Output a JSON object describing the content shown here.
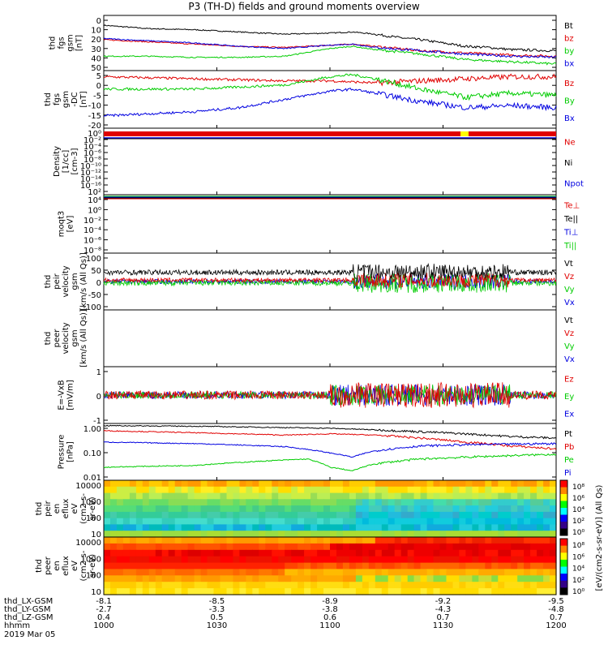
{
  "title": "P3 (TH-D) fields and ground moments overview",
  "colorbar_label": "[eV/(cm2-s-sr-eV)] (All Qs)",
  "footer": {
    "rows": [
      {
        "label": "thd_LX-GSM",
        "values": [
          "-8.1",
          "-8.5",
          "-8.9",
          "-9.2",
          "-9.5"
        ]
      },
      {
        "label": "thd_LY-GSM",
        "values": [
          "-2.7",
          "-3.3",
          "-3.8",
          "-4.3",
          "-4.8"
        ]
      },
      {
        "label": "thd_LZ-GSM",
        "values": [
          "0.4",
          "0.5",
          "0.6",
          "0.7",
          "0.7"
        ]
      },
      {
        "label": "hhmm",
        "values": [
          "1000",
          "1030",
          "1100",
          "1130",
          "1200"
        ]
      }
    ],
    "date": "2019 Mar 05"
  },
  "chart_data": [
    {
      "type": "line",
      "ylabel": [
        "thd",
        "fgs",
        "gsm",
        "[nT]"
      ],
      "ylim": [
        0,
        50
      ],
      "yticks": [
        "0",
        "10",
        "20",
        "30",
        "40",
        "50"
      ],
      "legend": [
        {
          "name": "Bt",
          "color": "#000000"
        },
        {
          "name": "bz",
          "color": "#e00000"
        },
        {
          "name": "by",
          "color": "#00cc00"
        },
        {
          "name": "bx",
          "color": "#0000e0"
        }
      ],
      "series": [
        {
          "name": "Bt",
          "color": "#000000",
          "points": [
            [
              0,
              41
            ],
            [
              0.1,
              38
            ],
            [
              0.2,
              37
            ],
            [
              0.3,
              35
            ],
            [
              0.4,
              33
            ],
            [
              0.5,
              34
            ],
            [
              0.55,
              35
            ],
            [
              0.6,
              33
            ],
            [
              0.65,
              30
            ],
            [
              0.7,
              28
            ],
            [
              0.75,
              25
            ],
            [
              0.8,
              22
            ],
            [
              0.85,
              21
            ],
            [
              0.9,
              19
            ],
            [
              1,
              18
            ]
          ]
        },
        {
          "name": "bz",
          "color": "#e00000",
          "points": [
            [
              0,
              28
            ],
            [
              0.1,
              26
            ],
            [
              0.2,
              24
            ],
            [
              0.3,
              22
            ],
            [
              0.4,
              21
            ],
            [
              0.5,
              23
            ],
            [
              0.55,
              24
            ],
            [
              0.6,
              22
            ],
            [
              0.65,
              20
            ],
            [
              0.7,
              18
            ],
            [
              0.8,
              16
            ],
            [
              0.9,
              14
            ],
            [
              1,
              13
            ]
          ]
        },
        {
          "name": "by",
          "color": "#00cc00",
          "points": [
            [
              0,
              13
            ],
            [
              0.1,
              13
            ],
            [
              0.2,
              12
            ],
            [
              0.3,
              12
            ],
            [
              0.4,
              13
            ],
            [
              0.5,
              20
            ],
            [
              0.55,
              22
            ],
            [
              0.6,
              19
            ],
            [
              0.7,
              15
            ],
            [
              0.8,
              10
            ],
            [
              0.9,
              8
            ],
            [
              1,
              6
            ]
          ]
        },
        {
          "name": "bx",
          "color": "#0000e0",
          "points": [
            [
              0,
              29
            ],
            [
              0.1,
              27
            ],
            [
              0.2,
              25
            ],
            [
              0.3,
              22
            ],
            [
              0.4,
              20
            ],
            [
              0.5,
              23
            ],
            [
              0.55,
              24
            ],
            [
              0.6,
              21
            ],
            [
              0.7,
              18
            ],
            [
              0.8,
              15
            ],
            [
              0.9,
              13
            ],
            [
              1,
              12
            ]
          ]
        }
      ]
    },
    {
      "type": "line",
      "ylabel": [
        "thd",
        "fgs",
        "gsm",
        "-DC",
        "[nT]"
      ],
      "ylim": [
        -22,
        6
      ],
      "yticks": [
        "5",
        "0",
        "-5",
        "-10",
        "-15",
        "-20"
      ],
      "ytick_values": [
        5,
        0,
        -5,
        -10,
        -15,
        -20
      ],
      "legend": [
        {
          "name": "Bz",
          "color": "#e00000"
        },
        {
          "name": "By",
          "color": "#00cc00"
        },
        {
          "name": "Bx",
          "color": "#0000e0"
        }
      ],
      "series": [
        {
          "name": "Bz",
          "color": "#e00000",
          "points": [
            [
              0,
              3
            ],
            [
              0.2,
              2
            ],
            [
              0.4,
              1
            ],
            [
              0.5,
              1
            ],
            [
              0.6,
              0
            ],
            [
              0.7,
              1
            ],
            [
              0.8,
              2
            ],
            [
              0.9,
              3
            ],
            [
              1,
              3
            ]
          ]
        },
        {
          "name": "By",
          "color": "#00cc00",
          "points": [
            [
              0,
              -3
            ],
            [
              0.2,
              -3
            ],
            [
              0.4,
              -1
            ],
            [
              0.5,
              3
            ],
            [
              0.55,
              4
            ],
            [
              0.6,
              2
            ],
            [
              0.7,
              -3
            ],
            [
              0.8,
              -7
            ],
            [
              0.9,
              -5
            ],
            [
              1,
              -6
            ]
          ]
        },
        {
          "name": "Bx",
          "color": "#0000e0",
          "points": [
            [
              0,
              -16
            ],
            [
              0.1,
              -15
            ],
            [
              0.2,
              -14
            ],
            [
              0.3,
              -12
            ],
            [
              0.4,
              -8
            ],
            [
              0.5,
              -4
            ],
            [
              0.55,
              -3
            ],
            [
              0.6,
              -5
            ],
            [
              0.7,
              -9
            ],
            [
              0.8,
              -12
            ],
            [
              0.9,
              -11
            ],
            [
              1,
              -12
            ]
          ]
        }
      ]
    },
    {
      "type": "line",
      "ylabel": [
        "Density",
        "[1/cc]",
        "[cm-3]"
      ],
      "yticks": [
        "10⁰",
        "10⁻²",
        "10⁻⁴",
        "10⁻⁶",
        "10⁻⁸",
        "10⁻¹⁰",
        "10⁻¹²",
        "10⁻¹⁴",
        "10⁻¹⁶",
        "10²"
      ],
      "legend": [
        {
          "name": "Ne",
          "color": "#e00000"
        },
        {
          "name": "Ni",
          "color": "#000000"
        },
        {
          "name": "Npot",
          "color": "#0000e0"
        }
      ]
    },
    {
      "type": "line",
      "ylabel": [
        "moqt3",
        "[eV]"
      ],
      "yticks": [
        "10⁴",
        "10⁰",
        "10⁻²",
        "10⁻⁴",
        "10⁻⁶",
        "10⁻⁸"
      ],
      "legend": [
        {
          "name": "Te⊥",
          "color": "#e00000"
        },
        {
          "name": "Te||",
          "color": "#000000"
        },
        {
          "name": "Ti⊥",
          "color": "#0000e0"
        },
        {
          "name": "Ti||",
          "color": "#00cc00"
        }
      ]
    },
    {
      "type": "line",
      "ylabel": [
        "thd",
        "peir",
        "velocity",
        "gsm",
        "[km/s (All Qs)]"
      ],
      "ylim": [
        -100,
        100
      ],
      "yticks": [
        "100",
        "50",
        "0",
        "-50",
        "-100"
      ],
      "legend": [
        {
          "name": "Vt",
          "color": "#000000"
        },
        {
          "name": "Vz",
          "color": "#e00000"
        },
        {
          "name": "Vy",
          "color": "#00cc00"
        },
        {
          "name": "Vx",
          "color": "#0000e0"
        }
      ]
    },
    {
      "type": "line",
      "ylabel": [
        "thd",
        "peer",
        "velocity",
        "gsm",
        "[km/s (All Qs)]"
      ],
      "legend": [
        {
          "name": "Vt",
          "color": "#000000"
        },
        {
          "name": "Vz",
          "color": "#e00000"
        },
        {
          "name": "Vy",
          "color": "#00cc00"
        },
        {
          "name": "Vx",
          "color": "#0000e0"
        }
      ]
    },
    {
      "type": "line",
      "ylabel": [
        "E=-VxB",
        "[mV/m]"
      ],
      "ylim": [
        -2,
        2
      ],
      "yticks": [
        "1",
        "0",
        "-1"
      ],
      "legend": [
        {
          "name": "Ez",
          "color": "#e00000"
        },
        {
          "name": "Ey",
          "color": "#00cc00"
        },
        {
          "name": "Ex",
          "color": "#0000e0"
        }
      ]
    },
    {
      "type": "line",
      "ylabel": [
        "Pressure",
        "[nPa]"
      ],
      "yscale": "log",
      "ylim": [
        0.01,
        1.2
      ],
      "yticks": [
        "1.00",
        "0.10",
        "0.01"
      ],
      "legend": [
        {
          "name": "Pt",
          "color": "#000000"
        },
        {
          "name": "Pb",
          "color": "#e00000"
        },
        {
          "name": "Pe",
          "color": "#00cc00"
        },
        {
          "name": "Pi",
          "color": "#0000e0"
        }
      ],
      "series": [
        {
          "name": "Pt",
          "color": "#000000",
          "points": [
            [
              0,
              1.0
            ],
            [
              0.2,
              0.95
            ],
            [
              0.4,
              0.85
            ],
            [
              0.5,
              0.8
            ],
            [
              0.6,
              0.7
            ],
            [
              0.7,
              0.6
            ],
            [
              0.8,
              0.5
            ],
            [
              0.9,
              0.4
            ],
            [
              1,
              0.35
            ]
          ]
        },
        {
          "name": "Pb",
          "color": "#e00000",
          "points": [
            [
              0,
              0.65
            ],
            [
              0.2,
              0.55
            ],
            [
              0.4,
              0.45
            ],
            [
              0.5,
              0.5
            ],
            [
              0.6,
              0.45
            ],
            [
              0.7,
              0.35
            ],
            [
              0.8,
              0.25
            ],
            [
              0.9,
              0.18
            ],
            [
              1,
              0.14
            ]
          ]
        },
        {
          "name": "Pi",
          "color": "#0000e0",
          "points": [
            [
              0,
              0.25
            ],
            [
              0.2,
              0.22
            ],
            [
              0.4,
              0.17
            ],
            [
              0.5,
              0.1
            ],
            [
              0.55,
              0.07
            ],
            [
              0.6,
              0.12
            ],
            [
              0.7,
              0.18
            ],
            [
              0.8,
              0.2
            ],
            [
              0.9,
              0.21
            ],
            [
              1,
              0.22
            ]
          ]
        },
        {
          "name": "Pe",
          "color": "#00cc00",
          "points": [
            [
              0,
              0.03
            ],
            [
              0.2,
              0.035
            ],
            [
              0.4,
              0.055
            ],
            [
              0.45,
              0.06
            ],
            [
              0.5,
              0.03
            ],
            [
              0.55,
              0.022
            ],
            [
              0.6,
              0.04
            ],
            [
              0.7,
              0.06
            ],
            [
              0.8,
              0.07
            ],
            [
              0.9,
              0.08
            ],
            [
              1,
              0.09
            ]
          ]
        }
      ]
    },
    {
      "type": "heatmap",
      "ylabel": [
        "thd",
        "peir",
        "en",
        "eflux",
        "eV",
        "(cm2-s-",
        "sr-eV)"
      ],
      "yscale": "log",
      "yticks": [
        "10000",
        "1000",
        "100",
        "10"
      ],
      "colorbar_ticks": [
        "10⁸",
        "10⁶",
        "10⁴",
        "10²",
        "10⁰"
      ]
    },
    {
      "type": "heatmap",
      "ylabel": [
        "thd",
        "peer",
        "en",
        "eflux",
        "eV",
        "(cm2-s-",
        "sr-eV)"
      ],
      "yscale": "log",
      "yticks": [
        "10000",
        "1000",
        "100",
        "10"
      ],
      "colorbar_ticks": [
        "10⁸",
        "10⁶",
        "10⁴",
        "10²",
        "10⁰"
      ]
    }
  ]
}
